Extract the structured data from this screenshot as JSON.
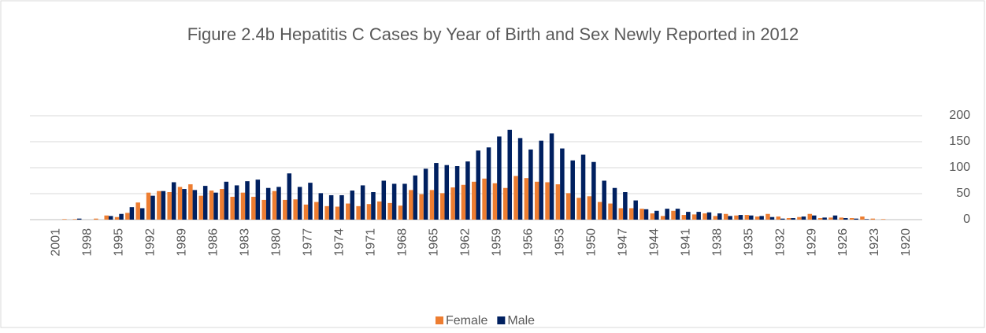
{
  "chart_data": {
    "type": "bar",
    "title": "Figure 2.4b Hepatitis C Cases by Year of Birth  and Sex Newly Reported in 2012",
    "categories": [
      null,
      null,
      "2001",
      null,
      null,
      "1998",
      null,
      null,
      "1995",
      null,
      null,
      "1992",
      null,
      null,
      "1989",
      null,
      null,
      "1986",
      null,
      null,
      "1983",
      null,
      null,
      "1980",
      null,
      null,
      "1977",
      null,
      null,
      "1974",
      null,
      null,
      "1971",
      null,
      null,
      "1968",
      null,
      null,
      "1965",
      null,
      null,
      "1962",
      null,
      null,
      "1959",
      null,
      null,
      "1956",
      null,
      null,
      "1953",
      null,
      null,
      "1950",
      null,
      null,
      "1947",
      null,
      null,
      "1944",
      null,
      null,
      "1941",
      null,
      null,
      "1938",
      null,
      null,
      "1935",
      null,
      null,
      "1932",
      null,
      null,
      "1929",
      null,
      null,
      "1926",
      null,
      null,
      "1923",
      null,
      null,
      "1920",
      null
    ],
    "series": [
      {
        "name": "Female",
        "color": "#ED7D31",
        "values": [
          0,
          0,
          0,
          1,
          1,
          0,
          2,
          8,
          5,
          13,
          33,
          52,
          55,
          53,
          63,
          68,
          46,
          56,
          59,
          44,
          52,
          44,
          38,
          55,
          38,
          39,
          29,
          34,
          26,
          25,
          31,
          26,
          30,
          35,
          32,
          27,
          57,
          49,
          57,
          51,
          62,
          67,
          73,
          79,
          70,
          61,
          84,
          80,
          73,
          72,
          68,
          51,
          42,
          45,
          34,
          31,
          22,
          22,
          21,
          12,
          7,
          17,
          9,
          10,
          12,
          7,
          11,
          8,
          9,
          6,
          11,
          6,
          3,
          5,
          11,
          3,
          4,
          4,
          3,
          6,
          2,
          1,
          0,
          0,
          0
        ]
      },
      {
        "name": "Male",
        "color": "#002060",
        "values": [
          0,
          0,
          0,
          0,
          2,
          0,
          0,
          7,
          11,
          24,
          22,
          46,
          55,
          72,
          59,
          57,
          65,
          52,
          73,
          66,
          74,
          77,
          61,
          63,
          89,
          63,
          71,
          51,
          47,
          47,
          56,
          66,
          53,
          75,
          69,
          69,
          85,
          98,
          109,
          105,
          103,
          112,
          133,
          139,
          160,
          173,
          157,
          135,
          152,
          166,
          137,
          114,
          125,
          111,
          75,
          61,
          53,
          37,
          20,
          17,
          21,
          21,
          15,
          15,
          14,
          12,
          7,
          9,
          8,
          7,
          5,
          2,
          3,
          6,
          8,
          4,
          8,
          3,
          2,
          1,
          0,
          0,
          0,
          0,
          0
        ]
      }
    ],
    "ylim": [
      0,
      200
    ],
    "yticks": [
      0,
      50,
      100,
      150,
      200
    ],
    "grid": true,
    "legend": "bottom"
  }
}
